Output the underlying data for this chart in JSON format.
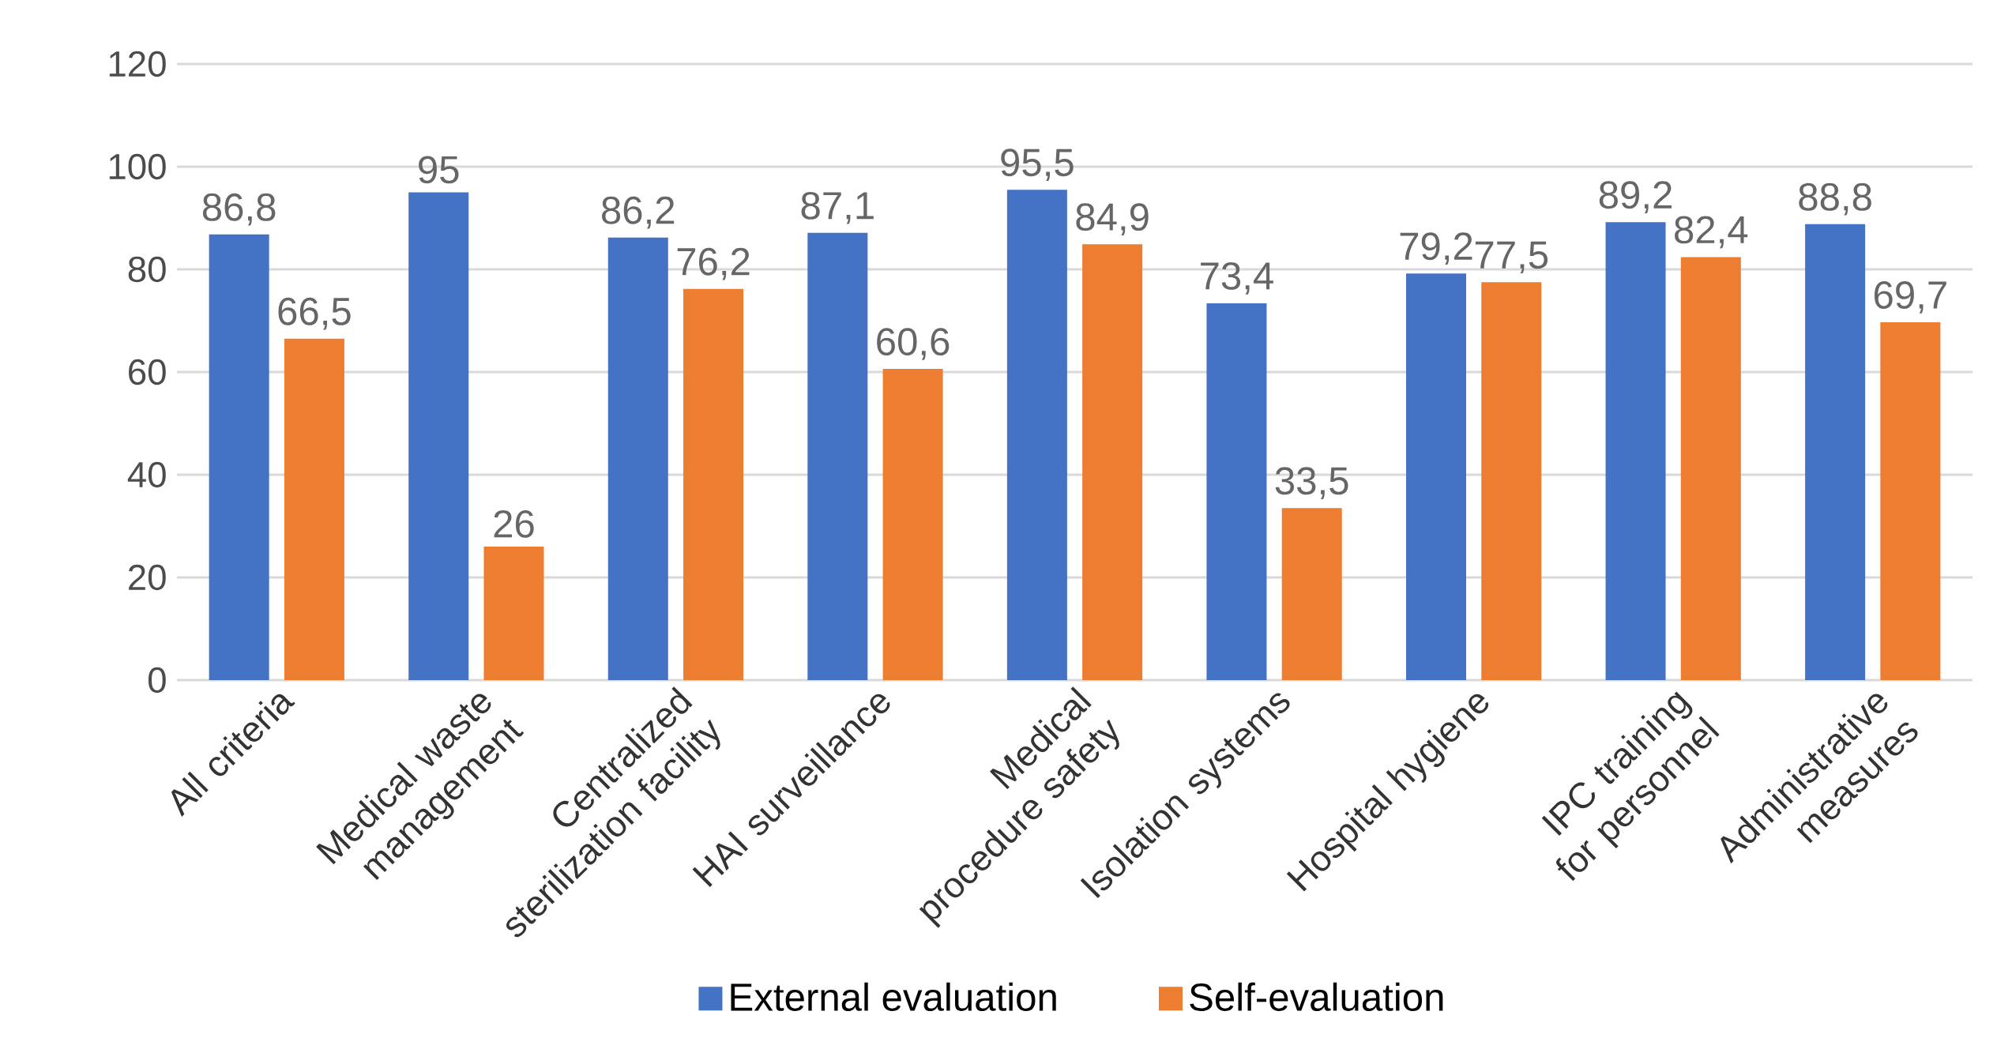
{
  "chart_data": {
    "type": "bar",
    "categories": [
      "All criteria",
      "Medical waste management",
      "Centralized sterilization facility",
      "HAI surveillance",
      "Medical procedure safety",
      "Isolation systems",
      "Hospital hygiene",
      "IPC training for personnel",
      "Administrative measures"
    ],
    "series": [
      {
        "name": "External evaluation",
        "color": "#4472c4",
        "values": [
          86.8,
          95,
          86.2,
          87.1,
          95.5,
          73.4,
          79.2,
          89.2,
          88.8
        ],
        "value_labels": [
          "86,8",
          "95",
          "86,2",
          "87,1",
          "95,5",
          "73,4",
          "79,2",
          "89,2",
          "88,8"
        ]
      },
      {
        "name": "Self-evaluation",
        "color": "#ed7d31",
        "values": [
          66.5,
          26,
          76.2,
          60.6,
          84.9,
          33.5,
          77.5,
          82.4,
          69.7
        ],
        "value_labels": [
          "66,5",
          "26",
          "76,2",
          "60,6",
          "84,9",
          "33,5",
          "77,5",
          "82,4",
          "69,7"
        ]
      }
    ],
    "ylim": [
      0,
      120
    ],
    "yticks": [
      0,
      20,
      40,
      60,
      80,
      100,
      120
    ],
    "grid": "y",
    "legend": "bottom"
  }
}
